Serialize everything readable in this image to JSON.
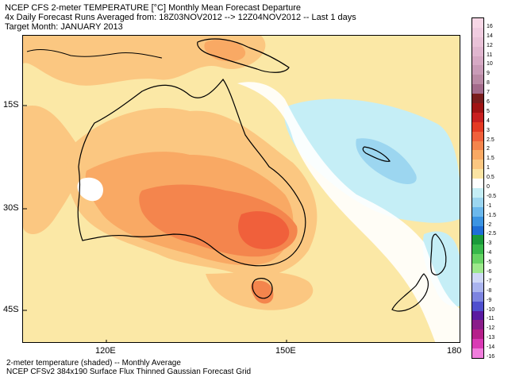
{
  "header": {
    "line1": "NCEP CFS 2-meter TEMPERATURE [°C] Monthly Mean Forecast Departure",
    "line2": "4x Daily Forecast Runs Averaged from: 18Z03NOV2012 --> 12Z04NOV2012 -- Last 1 days",
    "line3": "Target Month: JANUARY 2013"
  },
  "axes": {
    "lat_labels": [
      "15S",
      "30S",
      "45S"
    ],
    "lon_labels": [
      "120E",
      "150E",
      "180"
    ]
  },
  "footer": {
    "line1": "2-meter temperature (shaded) -- Monthly Average",
    "line2": "NCEP CFSv2 384x190 Surface Flux Thinned Gaussian Forecast Grid"
  },
  "colorbar": {
    "levels": [
      {
        "label": "16",
        "color": "#f7d7e6"
      },
      {
        "label": "14",
        "color": "#f0cce0"
      },
      {
        "label": "12",
        "color": "#e9c2d8"
      },
      {
        "label": "11",
        "color": "#e0b6cf"
      },
      {
        "label": "10",
        "color": "#d6a9c4"
      },
      {
        "label": "9",
        "color": "#c99bb7"
      },
      {
        "label": "8",
        "color": "#ba8aa5"
      },
      {
        "label": "7",
        "color": "#a36b8b"
      },
      {
        "label": "6",
        "color": "#7a1e1e"
      },
      {
        "label": "5",
        "color": "#a01414"
      },
      {
        "label": "4",
        "color": "#c82020"
      },
      {
        "label": "3",
        "color": "#e43a23"
      },
      {
        "label": "2.5",
        "color": "#f0603b"
      },
      {
        "label": "2",
        "color": "#f4854d"
      },
      {
        "label": "1.5",
        "color": "#f9a964"
      },
      {
        "label": "1",
        "color": "#fbc781"
      },
      {
        "label": "0.5",
        "color": "#fbe4a3"
      },
      {
        "label": "0",
        "color": "#ffffff"
      },
      {
        "label": "-0.5",
        "color": "#c5eef6"
      },
      {
        "label": "-1",
        "color": "#9cd6f0"
      },
      {
        "label": "-1.5",
        "color": "#6cb8ec"
      },
      {
        "label": "-2",
        "color": "#3c94e2"
      },
      {
        "label": "-2.5",
        "color": "#1f6ed6"
      },
      {
        "label": "-3",
        "color": "#1a9a3a"
      },
      {
        "label": "-4",
        "color": "#37b84a"
      },
      {
        "label": "-5",
        "color": "#66d364"
      },
      {
        "label": "-6",
        "color": "#9de88c"
      },
      {
        "label": "-7",
        "color": "#cfd8f6"
      },
      {
        "label": "-8",
        "color": "#aab4ee"
      },
      {
        "label": "-9",
        "color": "#7d84e0"
      },
      {
        "label": "-10",
        "color": "#4f4fce"
      },
      {
        "label": "-11",
        "color": "#5a1aa0"
      },
      {
        "label": "-12",
        "color": "#8a1e8a"
      },
      {
        "label": "-13",
        "color": "#b5208a"
      },
      {
        "label": "-14",
        "color": "#d93ab4"
      },
      {
        "label": "-16",
        "color": "#f07ddc"
      }
    ]
  },
  "map_colors": {
    "ocean_base": "#fbe8a6",
    "light_orange": "#fbc781",
    "orange": "#f9a964",
    "dark_orange": "#f4854d",
    "red_orange": "#f0603b",
    "cool": "#c5eef6",
    "cool2": "#9cd6f0",
    "neutral": "#ffffff",
    "coast": "#000000"
  }
}
